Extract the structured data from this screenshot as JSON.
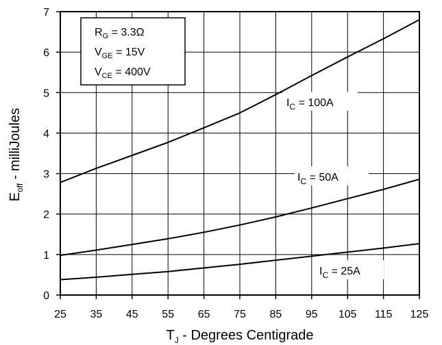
{
  "chart_data": {
    "type": "line",
    "title": "",
    "xlabel": {
      "main": "T",
      "sub": "J",
      "rest": " - Degrees Centigrade"
    },
    "ylabel": {
      "main": "E",
      "sub": "off",
      "rest": " - milliJoules"
    },
    "xlim": [
      25,
      125
    ],
    "ylim": [
      0,
      7
    ],
    "x_ticks": [
      25,
      35,
      45,
      55,
      65,
      75,
      85,
      95,
      105,
      115,
      125
    ],
    "y_ticks": [
      0,
      1,
      2,
      3,
      4,
      5,
      6,
      7
    ],
    "grid": true,
    "series": [
      {
        "name": "I_C = 100A",
        "label": {
          "main": "I",
          "sub": "C",
          "rest": " = 100A"
        },
        "x": [
          25,
          35,
          45,
          55,
          65,
          75,
          85,
          95,
          105,
          115,
          125
        ],
        "y": [
          2.78,
          3.13,
          3.45,
          3.77,
          4.13,
          4.5,
          4.95,
          5.42,
          5.88,
          6.33,
          6.8
        ]
      },
      {
        "name": "I_C = 50A",
        "label": {
          "main": "I",
          "sub": "C",
          "rest": " = 50A"
        },
        "x": [
          25,
          35,
          45,
          55,
          65,
          75,
          85,
          95,
          105,
          115,
          125
        ],
        "y": [
          0.98,
          1.11,
          1.25,
          1.39,
          1.55,
          1.73,
          1.93,
          2.15,
          2.38,
          2.61,
          2.86
        ]
      },
      {
        "name": "I_C = 25A",
        "label": {
          "main": "I",
          "sub": "C",
          "rest": " = 25A"
        },
        "x": [
          25,
          35,
          45,
          55,
          65,
          75,
          85,
          95,
          105,
          115,
          125
        ],
        "y": [
          0.38,
          0.44,
          0.51,
          0.58,
          0.67,
          0.76,
          0.86,
          0.96,
          1.06,
          1.16,
          1.27
        ]
      }
    ],
    "annotation_box": [
      {
        "main": "R",
        "sub": "G",
        "rest": " = 3.3Ω"
      },
      {
        "main": "V",
        "sub": "GE",
        "rest": " = 15V"
      },
      {
        "main": "V",
        "sub": "CE",
        "rest": " = 400V"
      }
    ]
  }
}
